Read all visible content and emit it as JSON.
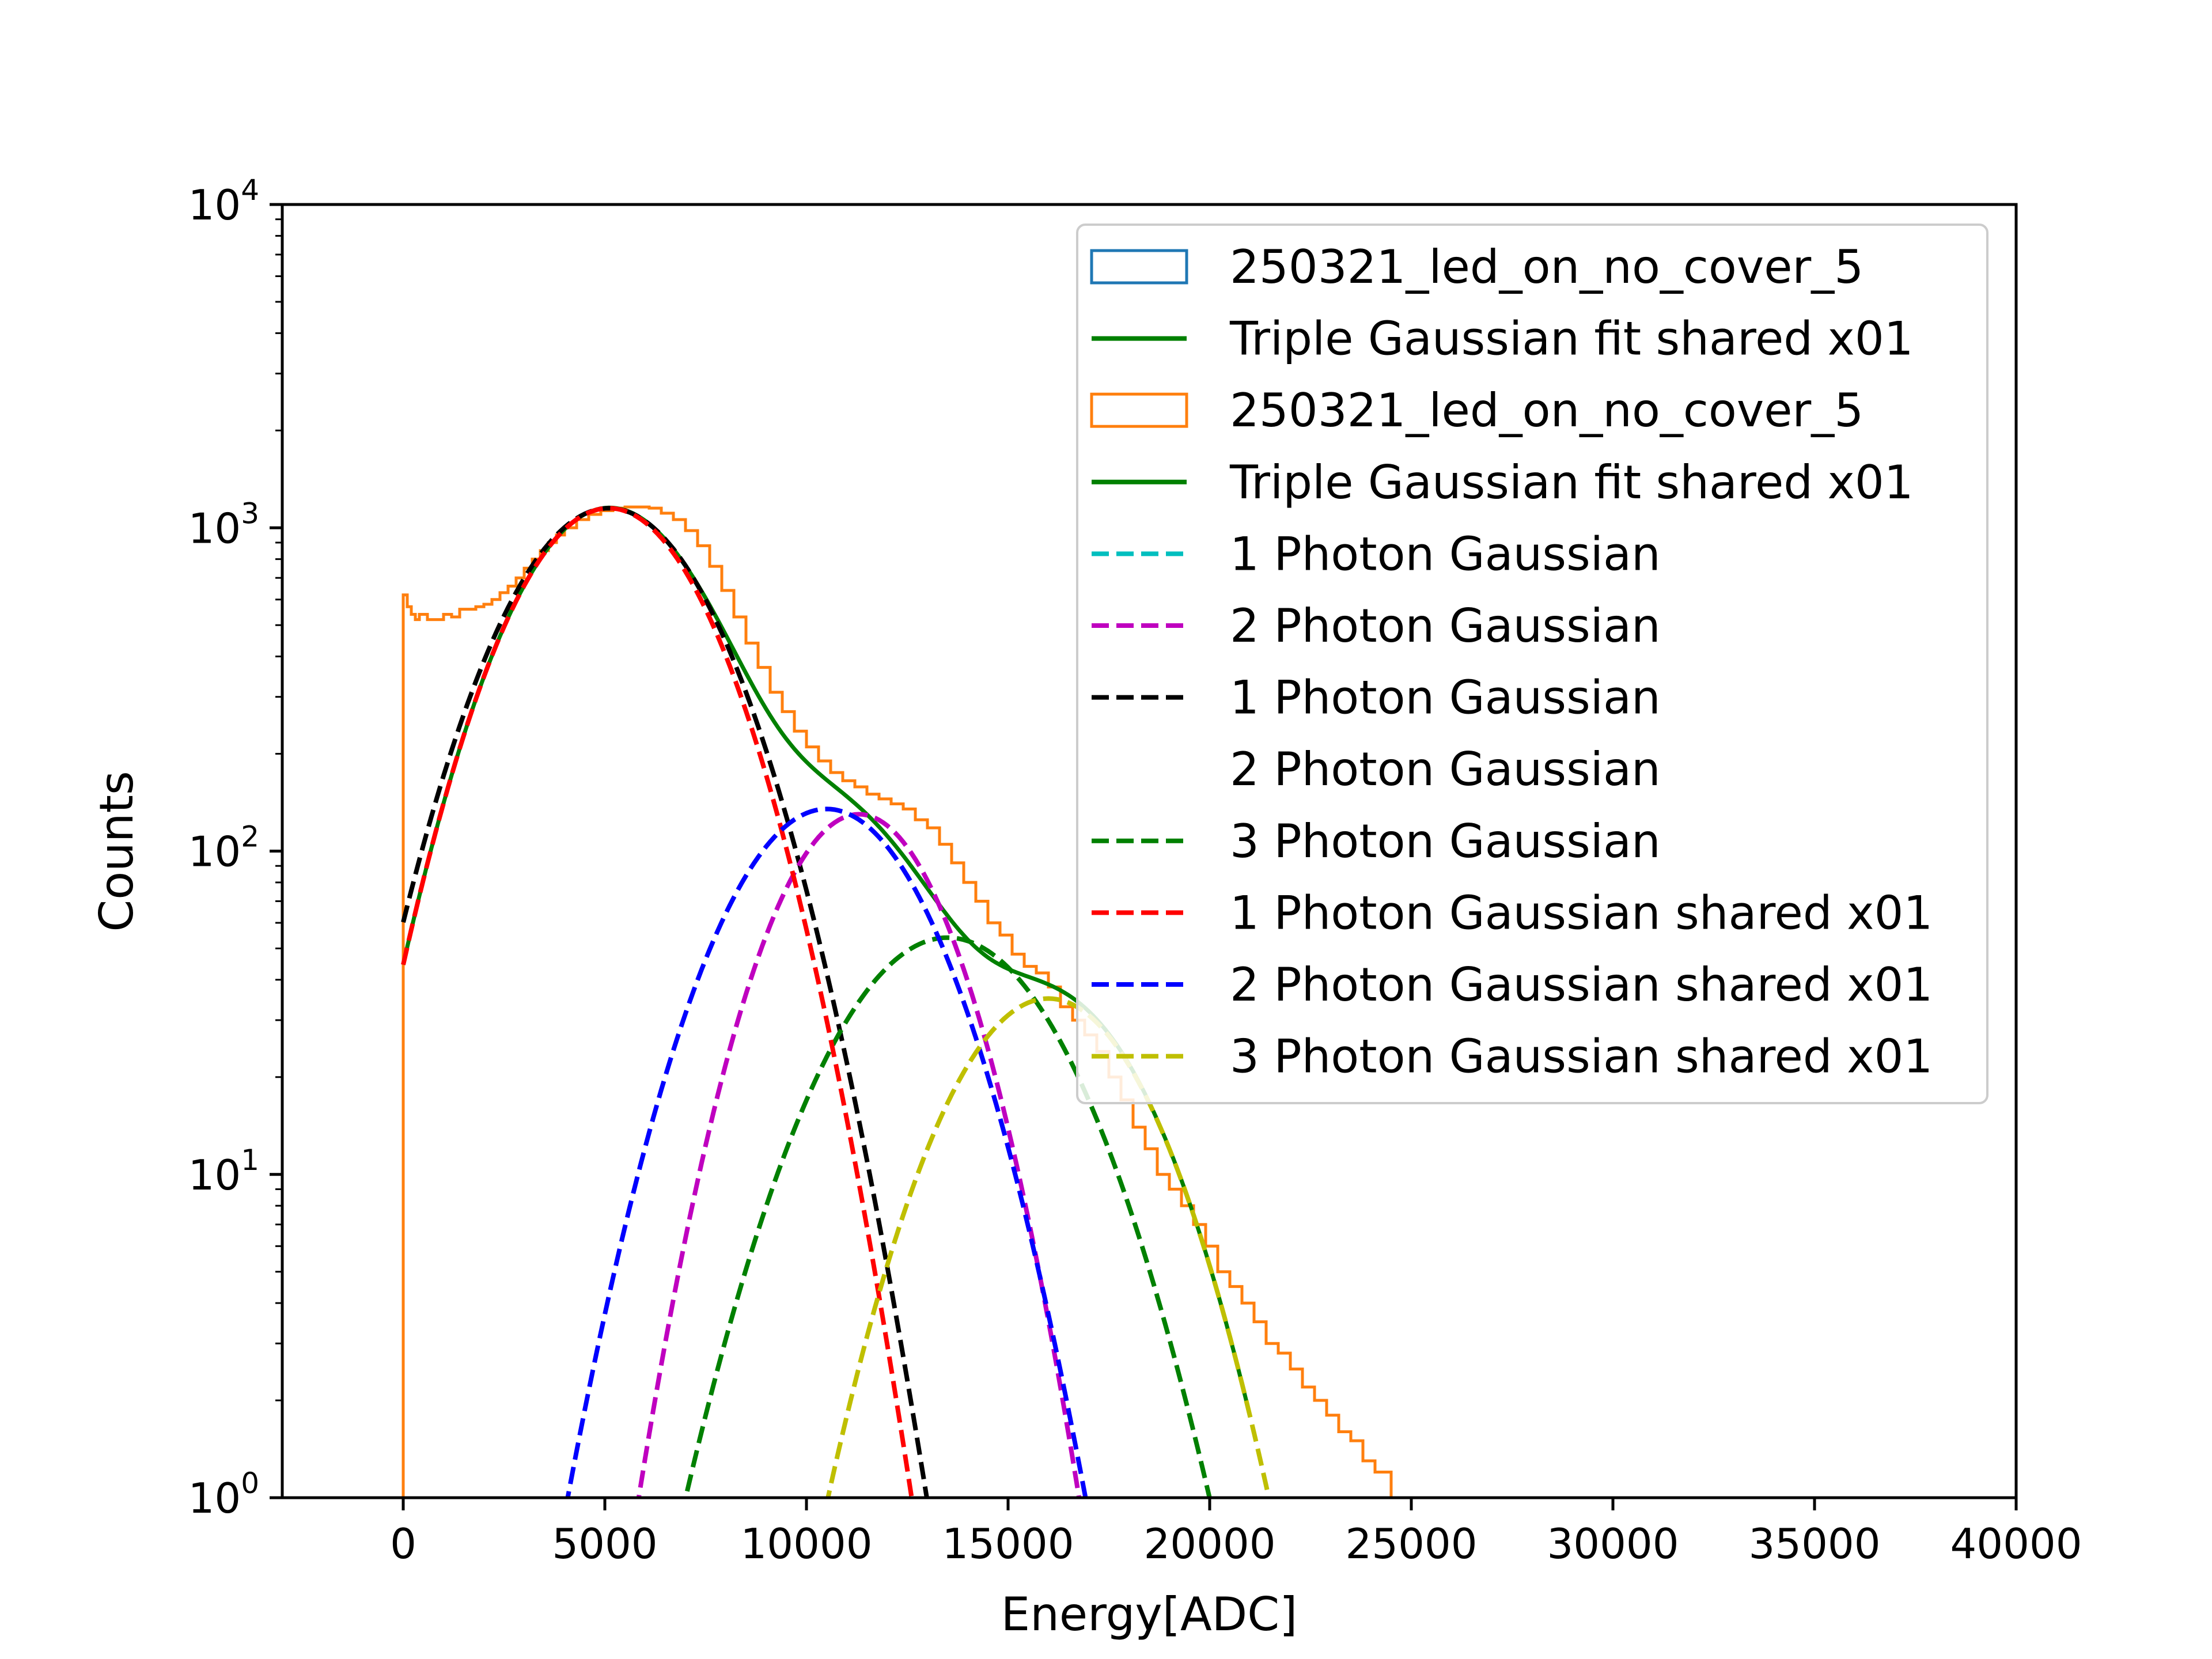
{
  "chart_data": {
    "type": "line",
    "title": "",
    "xlabel": "Energy[ADC]",
    "ylabel": "Counts",
    "xlim": [
      -3000,
      40000
    ],
    "ylim": [
      1,
      10000
    ],
    "yscale": "log",
    "grid": false,
    "legend_position": "top-right",
    "x_ticks": [
      {
        "value": 0,
        "label": "0"
      },
      {
        "value": 5000,
        "label": "5000"
      },
      {
        "value": 10000,
        "label": "10000"
      },
      {
        "value": 15000,
        "label": "15000"
      },
      {
        "value": 20000,
        "label": "20000"
      },
      {
        "value": 25000,
        "label": "25000"
      },
      {
        "value": 30000,
        "label": "30000"
      },
      {
        "value": 35000,
        "label": "35000"
      },
      {
        "value": 40000,
        "label": "40000"
      }
    ],
    "y_ticks": [
      {
        "value": 1,
        "base": "10",
        "exp": "0"
      },
      {
        "value": 10,
        "base": "10",
        "exp": "1"
      },
      {
        "value": 100,
        "base": "10",
        "exp": "2"
      },
      {
        "value": 1000,
        "base": "10",
        "exp": "3"
      },
      {
        "value": 10000,
        "base": "10",
        "exp": "4"
      }
    ],
    "histogram": {
      "name": "250321_led_on_no_cover_5",
      "color": "#ff7f0e",
      "points": [
        [
          0,
          620
        ],
        [
          100,
          570
        ],
        [
          200,
          540
        ],
        [
          300,
          520
        ],
        [
          400,
          540
        ],
        [
          600,
          520
        ],
        [
          800,
          520
        ],
        [
          1000,
          540
        ],
        [
          1200,
          530
        ],
        [
          1400,
          560
        ],
        [
          1600,
          560
        ],
        [
          1800,
          570
        ],
        [
          2000,
          580
        ],
        [
          2200,
          600
        ],
        [
          2400,
          630
        ],
        [
          2600,
          660
        ],
        [
          2800,
          700
        ],
        [
          3000,
          750
        ],
        [
          3200,
          800
        ],
        [
          3400,
          850
        ],
        [
          3600,
          900
        ],
        [
          3800,
          950
        ],
        [
          4000,
          1000
        ],
        [
          4300,
          1060
        ],
        [
          4600,
          1100
        ],
        [
          4900,
          1130
        ],
        [
          5200,
          1150
        ],
        [
          5500,
          1160
        ],
        [
          5800,
          1160
        ],
        [
          6100,
          1150
        ],
        [
          6400,
          1110
        ],
        [
          6700,
          1060
        ],
        [
          7000,
          980
        ],
        [
          7300,
          880
        ],
        [
          7600,
          760
        ],
        [
          7900,
          640
        ],
        [
          8200,
          530
        ],
        [
          8500,
          440
        ],
        [
          8800,
          370
        ],
        [
          9100,
          310
        ],
        [
          9400,
          270
        ],
        [
          9700,
          235
        ],
        [
          10000,
          210
        ],
        [
          10300,
          190
        ],
        [
          10600,
          175
        ],
        [
          10900,
          165
        ],
        [
          11200,
          158
        ],
        [
          11500,
          150
        ],
        [
          11800,
          145
        ],
        [
          12100,
          140
        ],
        [
          12400,
          135
        ],
        [
          12700,
          125
        ],
        [
          13000,
          118
        ],
        [
          13300,
          105
        ],
        [
          13600,
          92
        ],
        [
          13900,
          80
        ],
        [
          14200,
          70
        ],
        [
          14500,
          60
        ],
        [
          14800,
          55
        ],
        [
          15100,
          48
        ],
        [
          15400,
          44
        ],
        [
          15700,
          42
        ],
        [
          16000,
          38
        ],
        [
          16300,
          33
        ],
        [
          16600,
          30
        ],
        [
          16900,
          27
        ],
        [
          17200,
          24
        ],
        [
          17500,
          20
        ],
        [
          17800,
          17
        ],
        [
          18100,
          14
        ],
        [
          18400,
          12
        ],
        [
          18700,
          10
        ],
        [
          19000,
          9
        ],
        [
          19300,
          8
        ],
        [
          19600,
          7
        ],
        [
          19900,
          6
        ],
        [
          20200,
          5
        ],
        [
          20500,
          4.5
        ],
        [
          20800,
          4
        ],
        [
          21100,
          3.5
        ],
        [
          21400,
          3
        ],
        [
          21700,
          2.8
        ],
        [
          22000,
          2.5
        ],
        [
          22300,
          2.2
        ],
        [
          22600,
          2
        ],
        [
          22900,
          1.8
        ],
        [
          23200,
          1.6
        ],
        [
          23500,
          1.5
        ],
        [
          23800,
          1.3
        ],
        [
          24100,
          1.2
        ],
        [
          24500,
          1
        ],
        [
          25000,
          1
        ],
        [
          26000,
          1
        ],
        [
          27000,
          1
        ],
        [
          28000,
          1
        ],
        [
          29000,
          1
        ]
      ]
    },
    "series": [
      {
        "name": "Triple Gaussian fit shared x01",
        "color": "#008000",
        "dash": "solid",
        "kind": "triple"
      },
      {
        "name": "1 Photon Gaussian",
        "color": "#000000",
        "dash": "dashed",
        "amp": 1150,
        "mu": 5100,
        "sigma": 2100
      },
      {
        "name": "2 Photon Gaussian",
        "color": "#bf00bf",
        "dash": "dashed",
        "amp": 130,
        "mu": 11300,
        "sigma": 1750
      },
      {
        "name": "3 Photon Gaussian",
        "color": "#008000",
        "dash": "dashed",
        "amp": 54,
        "mu": 13500,
        "sigma": 2300
      },
      {
        "name": "1 Photon Gaussian shared x01",
        "color": "#ff0000",
        "dash": "dashed",
        "amp": 1150,
        "mu": 5100,
        "sigma": 2000
      },
      {
        "name": "2 Photon Gaussian shared x01",
        "color": "#0000ff",
        "dash": "dashed",
        "amp": 135,
        "mu": 10500,
        "sigma": 2050
      },
      {
        "name": "3 Photon Gaussian shared x01",
        "color": "#bfbf00",
        "dash": "dashed",
        "amp": 35,
        "mu": 16000,
        "sigma": 2050
      }
    ],
    "legend": [
      {
        "label": "250321_led_on_no_cover_5",
        "kind": "box",
        "color": "#1f77b4"
      },
      {
        "label": "Triple Gaussian fit shared x01",
        "kind": "line",
        "color": "#008000"
      },
      {
        "label": "250321_led_on_no_cover_5",
        "kind": "box",
        "color": "#ff7f0e"
      },
      {
        "label": "Triple Gaussian fit shared x01",
        "kind": "line",
        "color": "#008000"
      },
      {
        "label": "1 Photon Gaussian",
        "kind": "dash",
        "color": "#00bfbf"
      },
      {
        "label": "2 Photon Gaussian",
        "kind": "dash",
        "color": "#bf00bf"
      },
      {
        "label": "1 Photon Gaussian",
        "kind": "dash",
        "color": "#000000"
      },
      {
        "label": "2 Photon Gaussian",
        "kind": "none",
        "color": "#ffffff"
      },
      {
        "label": "3 Photon Gaussian",
        "kind": "dash",
        "color": "#008000"
      },
      {
        "label": "1 Photon Gaussian shared x01",
        "kind": "dash",
        "color": "#ff0000"
      },
      {
        "label": "2 Photon Gaussian shared x01",
        "kind": "dash",
        "color": "#0000ff"
      },
      {
        "label": "3 Photon Gaussian shared x01",
        "kind": "dash",
        "color": "#bfbf00"
      }
    ]
  }
}
